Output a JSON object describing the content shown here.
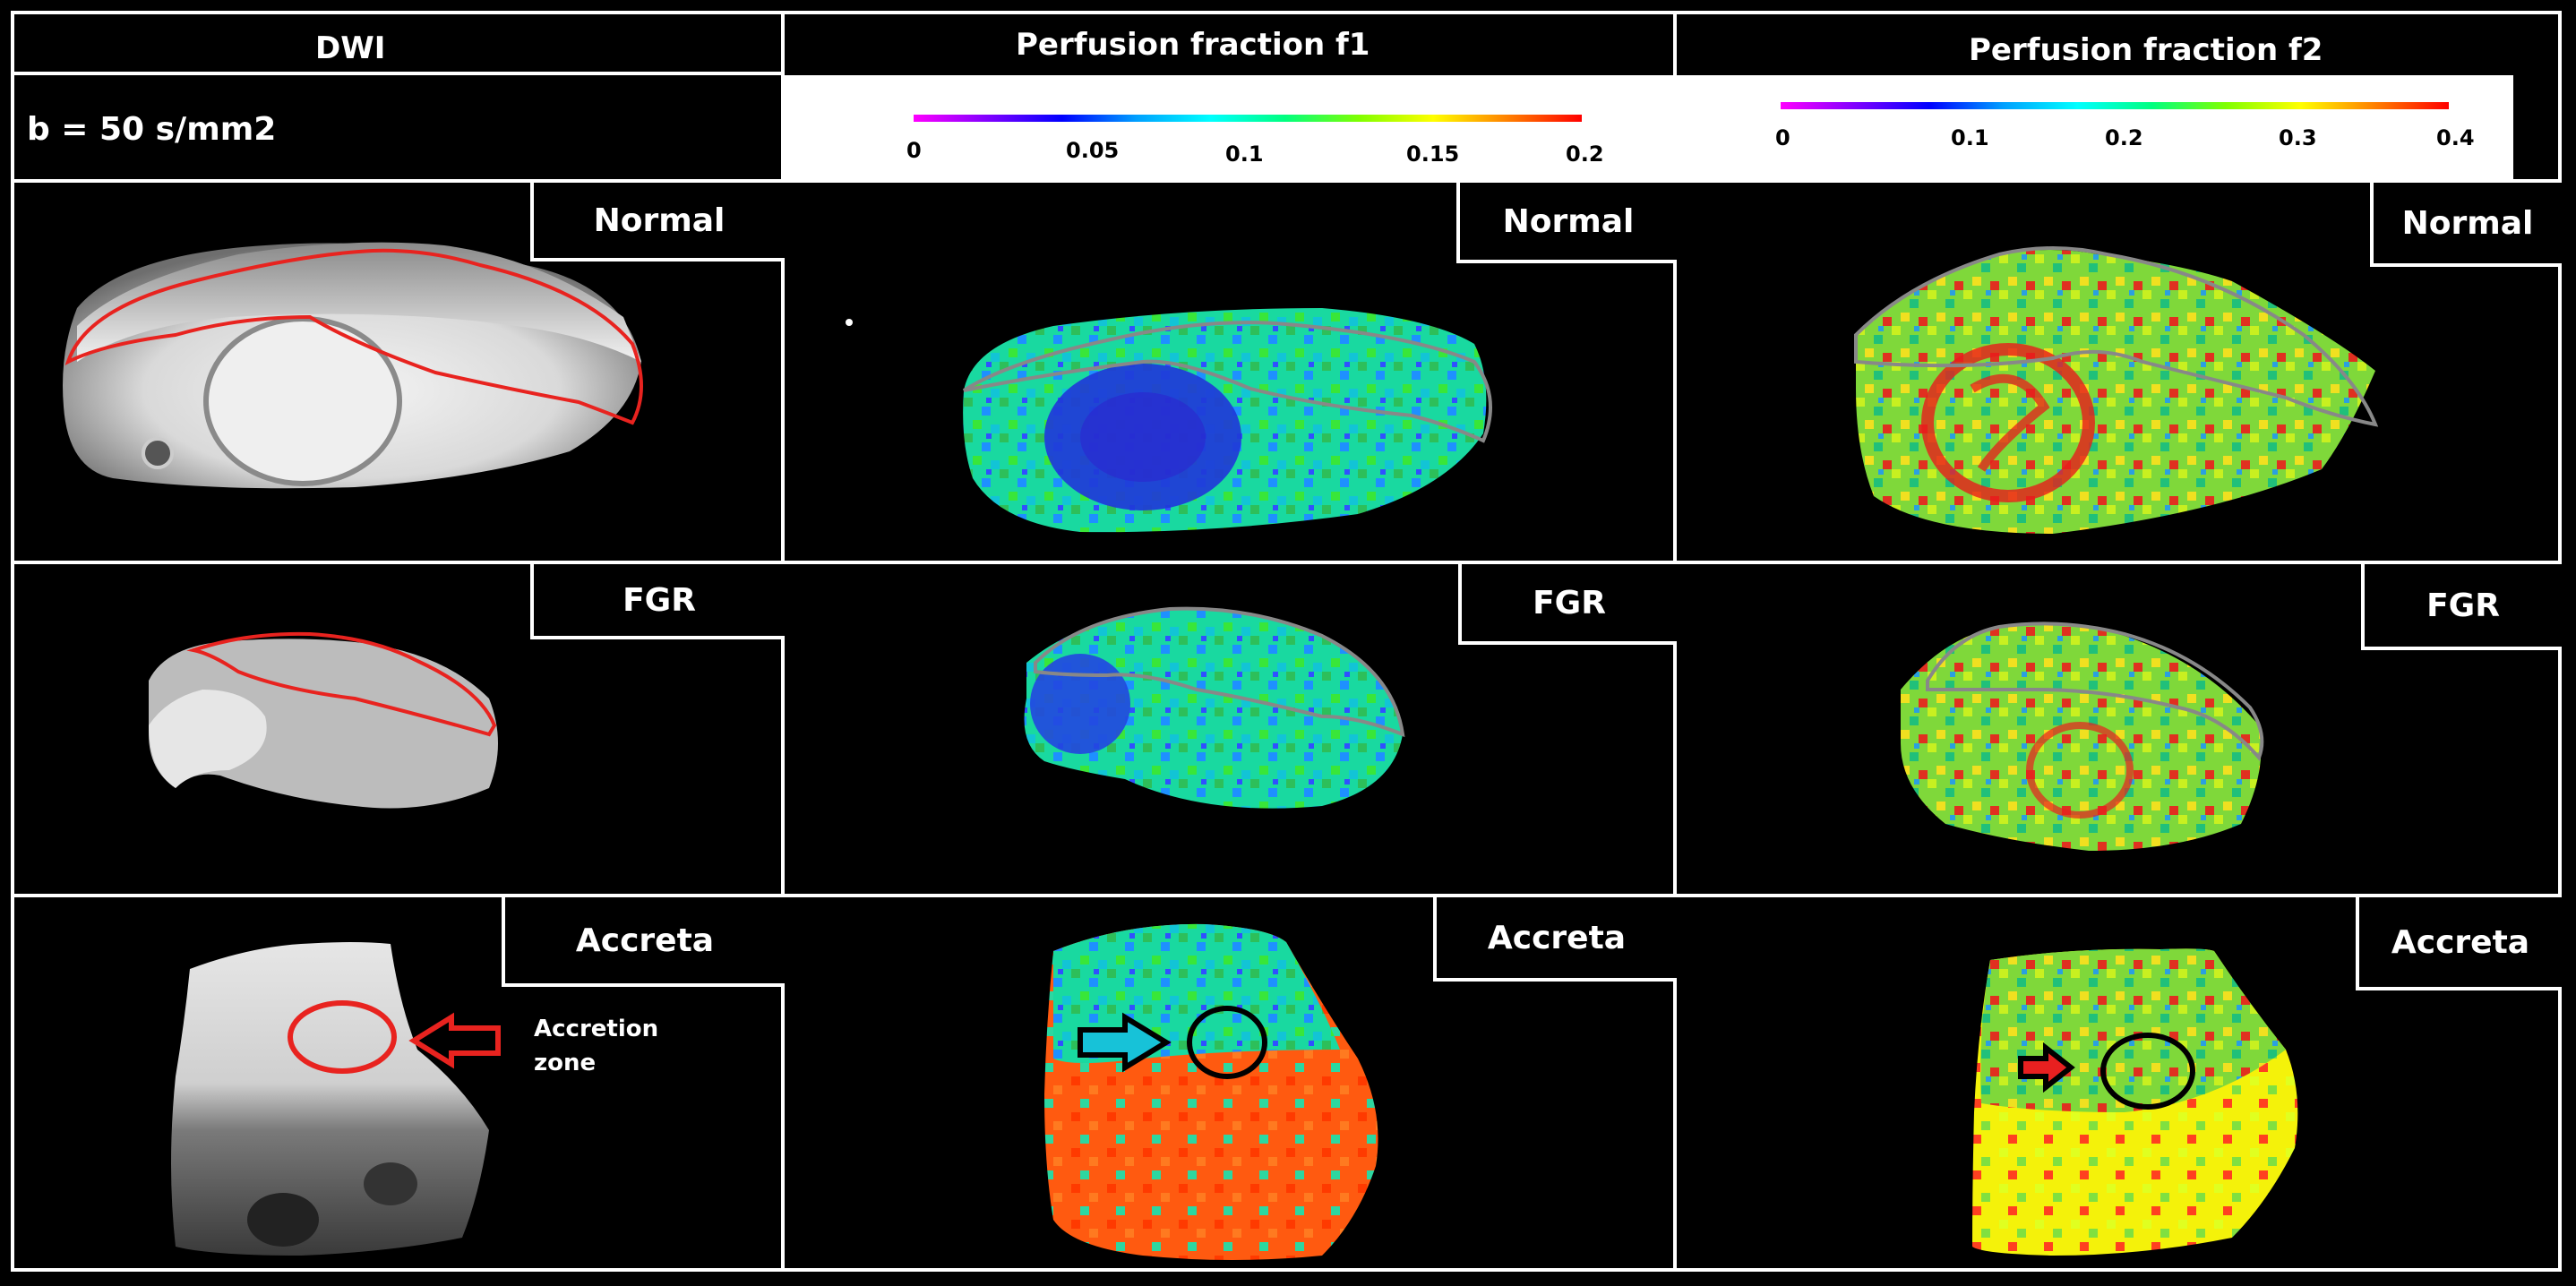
{
  "columns": [
    {
      "title": "DWI"
    },
    {
      "title": "Perfusion fraction f1"
    },
    {
      "title": "Perfusion fraction f2"
    }
  ],
  "dwi_param": "b = 50 s/mm2",
  "f1_scale": {
    "ticks": [
      "0",
      "0.05",
      "0.1",
      "0.15",
      "0.2"
    ],
    "min": 0,
    "max": 0.2
  },
  "f2_scale": {
    "ticks": [
      "0",
      "0.1",
      "0.2",
      "0.3",
      "0.4"
    ],
    "min": 0,
    "max": 0.4
  },
  "rows": [
    {
      "label": "Normal"
    },
    {
      "label": "FGR"
    },
    {
      "label": "Accreta"
    }
  ],
  "annotation": {
    "line1": "Accretion",
    "line2": "zone"
  },
  "colors": {
    "roi_dwi": "#e8231f",
    "roi_map": "#888888",
    "arrow_dwi": "#e8231f",
    "arrow_map": "#000000"
  }
}
